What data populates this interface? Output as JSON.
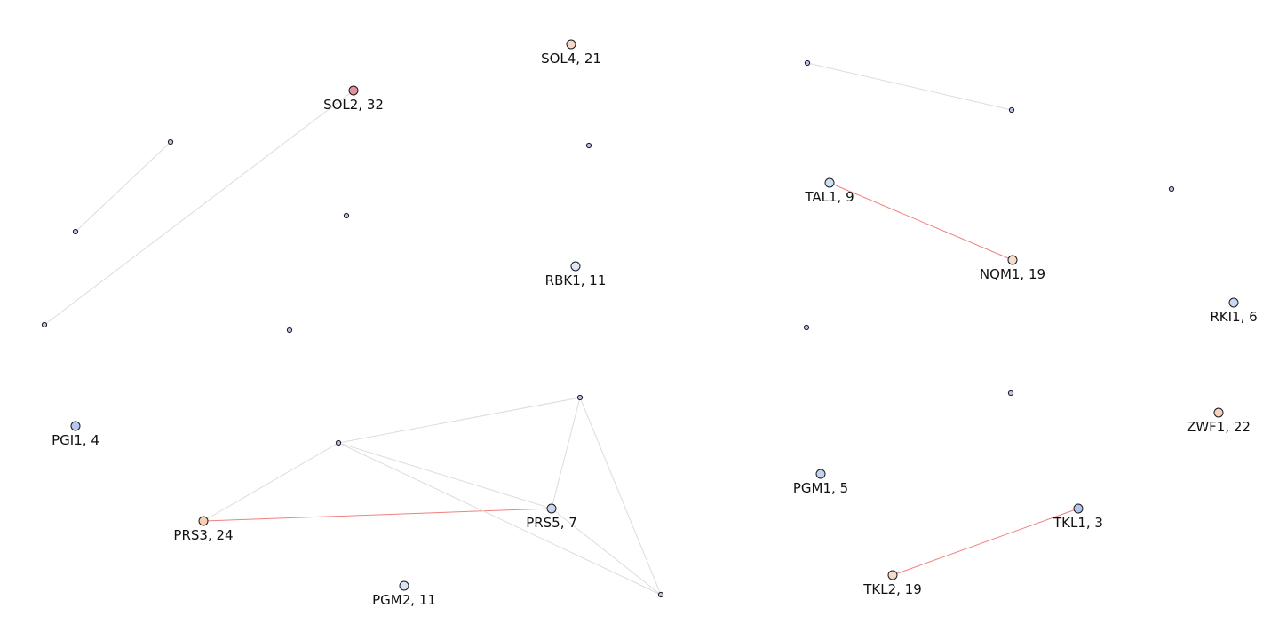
{
  "graph": {
    "nodes": [
      {
        "id": "SOL4",
        "label": "SOL4, 21",
        "size": "large",
        "color": "#f6d8c6"
      },
      {
        "id": "SOL2",
        "label": "SOL2, 32",
        "size": "large",
        "color": "#e8909a"
      },
      {
        "id": "TAL1",
        "label": "TAL1, 9",
        "size": "large",
        "color": "#cfe0f4"
      },
      {
        "id": "NQM1",
        "label": "NQM1, 19",
        "size": "large",
        "color": "#f4dccc"
      },
      {
        "id": "RBK1",
        "label": "RBK1, 11",
        "size": "large",
        "color": "#dde8f7"
      },
      {
        "id": "RKI1",
        "label": "RKI1, 6",
        "size": "large",
        "color": "#c9d8f2"
      },
      {
        "id": "PGI1",
        "label": "PGI1, 4",
        "size": "large",
        "color": "#b6c8ee"
      },
      {
        "id": "ZWF1",
        "label": "ZWF1, 22",
        "size": "large",
        "color": "#f5d3c0"
      },
      {
        "id": "PGM1",
        "label": "PGM1, 5",
        "size": "large",
        "color": "#c2d3f0"
      },
      {
        "id": "PRS3",
        "label": "PRS3, 24",
        "size": "large",
        "color": "#f6cdb5"
      },
      {
        "id": "PRS5",
        "label": "PRS5, 7",
        "size": "large",
        "color": "#c8d6f1"
      },
      {
        "id": "TKL1",
        "label": "TKL1, 3",
        "size": "large",
        "color": "#b3c5ec"
      },
      {
        "id": "TKL2",
        "label": "TKL2, 19",
        "size": "large",
        "color": "#f4dbcb"
      },
      {
        "id": "PGM2",
        "label": "PGM2, 11",
        "size": "large",
        "color": "#d9e5f6"
      },
      {
        "id": "a1",
        "label": "",
        "size": "small",
        "color": "#b8c4ea"
      },
      {
        "id": "a2",
        "label": "",
        "size": "small",
        "color": "#b8c4ea"
      },
      {
        "id": "a3",
        "label": "",
        "size": "small",
        "color": "#b8c4ea"
      },
      {
        "id": "a4",
        "label": "",
        "size": "small",
        "color": "#b8c4ea"
      },
      {
        "id": "a5",
        "label": "",
        "size": "small",
        "color": "#b8c4ea"
      },
      {
        "id": "a6",
        "label": "",
        "size": "small",
        "color": "#b8c4ea"
      },
      {
        "id": "a7",
        "label": "",
        "size": "small",
        "color": "#b8c4ea"
      },
      {
        "id": "a8",
        "label": "",
        "size": "small",
        "color": "#b8c4ea"
      },
      {
        "id": "a9",
        "label": "",
        "size": "small",
        "color": "#b8c4ea"
      },
      {
        "id": "a10",
        "label": "",
        "size": "small",
        "color": "#b8c4ea"
      },
      {
        "id": "a11",
        "label": "",
        "size": "small",
        "color": "#b8c4ea"
      },
      {
        "id": "a12",
        "label": "",
        "size": "small",
        "color": "#b8c4ea"
      },
      {
        "id": "a13",
        "label": "",
        "size": "small",
        "color": "#b8c4ea"
      },
      {
        "id": "a14",
        "label": "",
        "size": "small",
        "color": "#b8c4ea"
      }
    ],
    "edges": [
      {
        "source": "SOL2",
        "target": "a4",
        "type": "gray"
      },
      {
        "source": "a2",
        "target": "a3",
        "type": "gray"
      },
      {
        "source": "a5",
        "target": "a6",
        "type": "gray"
      },
      {
        "source": "TAL1",
        "target": "NQM1",
        "type": "red"
      },
      {
        "source": "PRS3",
        "target": "PRS5",
        "type": "red"
      },
      {
        "source": "TKL1",
        "target": "TKL2",
        "type": "red"
      },
      {
        "source": "PRS3",
        "target": "a12",
        "type": "gray"
      },
      {
        "source": "a12",
        "target": "a11",
        "type": "gray"
      },
      {
        "source": "a12",
        "target": "PRS5",
        "type": "gray"
      },
      {
        "source": "a12",
        "target": "a13",
        "type": "gray"
      },
      {
        "source": "a11",
        "target": "PRS5",
        "type": "gray"
      },
      {
        "source": "a11",
        "target": "a13",
        "type": "gray"
      },
      {
        "source": "PRS5",
        "target": "a13",
        "type": "gray"
      }
    ],
    "edge_colors": {
      "gray": "#dcdcdc",
      "red": "#f08080"
    },
    "node_stroke": "#1a1a1a"
  }
}
